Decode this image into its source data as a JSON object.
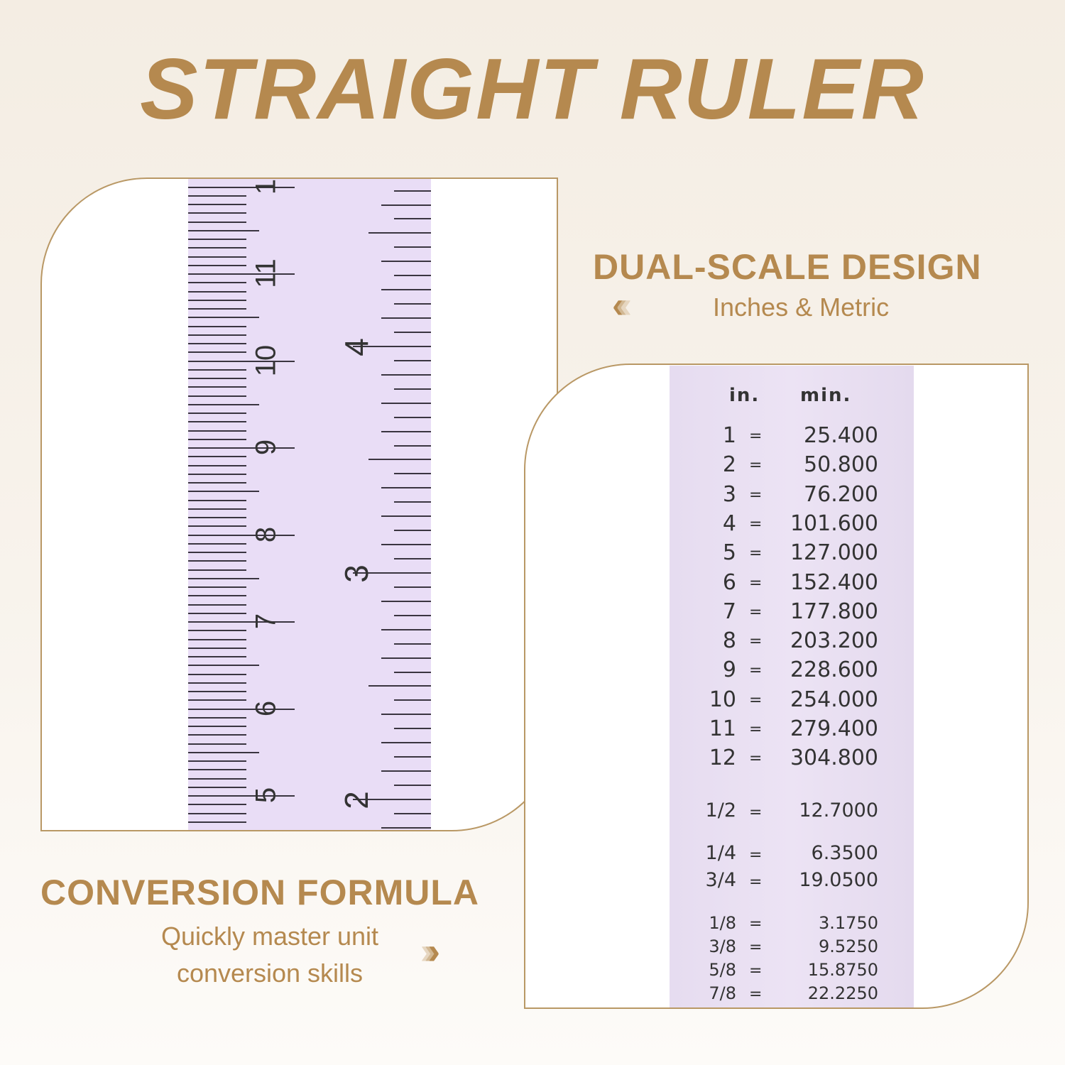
{
  "title": "STRAIGHT RULER",
  "feature1": {
    "heading": "DUAL-SCALE DESIGN",
    "subtitle": "Inches & Metric",
    "chevron_icon": "chevrons-left"
  },
  "feature2": {
    "heading": "CONVERSION FORMULA",
    "subtitle_line1": "Quickly master unit",
    "subtitle_line2": "conversion skills",
    "chevron_icon": "chevrons-right"
  },
  "colors": {
    "gold": "#b5894f",
    "ruler": "#e9ddf6"
  },
  "ruler": {
    "cm_labels": [
      "5",
      "6",
      "7",
      "8",
      "9",
      "10",
      "11",
      "1"
    ],
    "inch_labels": [
      "2",
      "3",
      "4"
    ]
  },
  "table": {
    "header_in": "in.",
    "header_mm": "min.",
    "rows": [
      {
        "in": "1",
        "mm": "25.400"
      },
      {
        "in": "2",
        "mm": "50.800"
      },
      {
        "in": "3",
        "mm": "76.200"
      },
      {
        "in": "4",
        "mm": "101.600"
      },
      {
        "in": "5",
        "mm": "127.000"
      },
      {
        "in": "6",
        "mm": "152.400"
      },
      {
        "in": "7",
        "mm": "177.800"
      },
      {
        "in": "8",
        "mm": "203.200"
      },
      {
        "in": "9",
        "mm": "228.600"
      },
      {
        "in": "10",
        "mm": "254.000"
      },
      {
        "in": "11",
        "mm": "279.400"
      },
      {
        "in": "12",
        "mm": "304.800"
      },
      {
        "in": "1/2",
        "mm": "12.7000"
      },
      {
        "in": "1/4",
        "mm": "6.3500"
      },
      {
        "in": "3/4",
        "mm": "19.0500"
      },
      {
        "in": "1/8",
        "mm": "3.1750"
      },
      {
        "in": "3/8",
        "mm": "9.5250"
      },
      {
        "in": "5/8",
        "mm": "15.8750"
      },
      {
        "in": "7/8",
        "mm": "22.2250"
      }
    ],
    "equals": "="
  }
}
